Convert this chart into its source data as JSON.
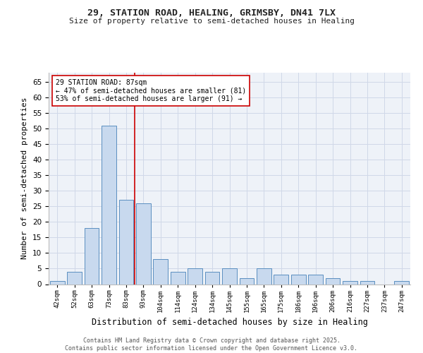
{
  "title1": "29, STATION ROAD, HEALING, GRIMSBY, DN41 7LX",
  "title2": "Size of property relative to semi-detached houses in Healing",
  "xlabel": "Distribution of semi-detached houses by size in Healing",
  "ylabel": "Number of semi-detached properties",
  "categories": [
    "42sqm",
    "52sqm",
    "63sqm",
    "73sqm",
    "83sqm",
    "93sqm",
    "104sqm",
    "114sqm",
    "124sqm",
    "134sqm",
    "145sqm",
    "155sqm",
    "165sqm",
    "175sqm",
    "186sqm",
    "196sqm",
    "206sqm",
    "216sqm",
    "227sqm",
    "237sqm",
    "247sqm"
  ],
  "values": [
    1,
    4,
    18,
    51,
    27,
    26,
    8,
    4,
    5,
    4,
    5,
    2,
    5,
    3,
    3,
    3,
    2,
    1,
    1,
    0,
    1
  ],
  "bar_color": "#c8d9ee",
  "bar_edge_color": "#5b8fc0",
  "grid_color": "#d0d8e8",
  "bg_color": "#eef2f8",
  "annotation_line1": "29 STATION ROAD: 87sqm",
  "annotation_line2": "← 47% of semi-detached houses are smaller (81)",
  "annotation_line3": "53% of semi-detached houses are larger (91) →",
  "vline_color": "#cc0000",
  "annotation_box_color": "#cc0000",
  "footer": "Contains HM Land Registry data © Crown copyright and database right 2025.\nContains public sector information licensed under the Open Government Licence v3.0.",
  "ylim": [
    0,
    68
  ],
  "yticks": [
    0,
    5,
    10,
    15,
    20,
    25,
    30,
    35,
    40,
    45,
    50,
    55,
    60,
    65
  ]
}
